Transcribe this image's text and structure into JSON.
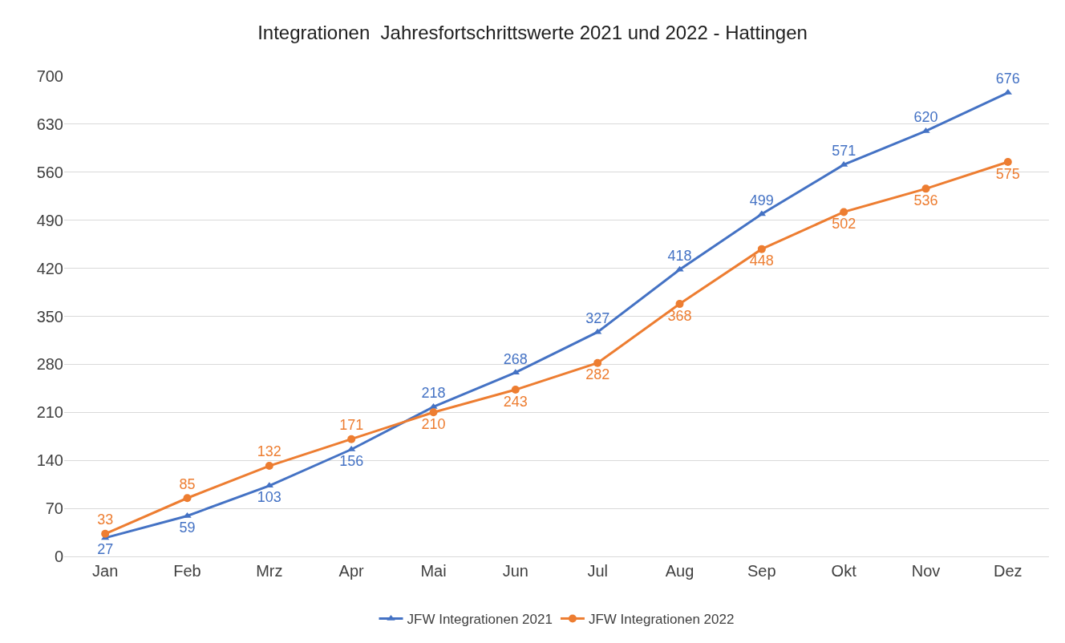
{
  "chart_data": {
    "type": "line",
    "title": "Integrationen  Jahresfortschrittswerte 2021 und 2022 - Hattingen",
    "categories": [
      "Jan",
      "Feb",
      "Mrz",
      "Apr",
      "Mai",
      "Jun",
      "Jul",
      "Aug",
      "Sep",
      "Okt",
      "Nov",
      "Dez"
    ],
    "series": [
      {
        "name": "JFW Integrationen 2021",
        "color": "#4472c4",
        "marker": "triangle",
        "values": [
          27,
          59,
          103,
          156,
          218,
          268,
          327,
          418,
          499,
          571,
          620,
          676
        ]
      },
      {
        "name": "JFW Integrationen 2022",
        "color": "#ed7d31",
        "marker": "circle",
        "values": [
          33,
          85,
          132,
          171,
          210,
          243,
          282,
          368,
          448,
          502,
          536,
          575
        ]
      }
    ],
    "ylim": [
      0,
      700
    ],
    "yticks": [
      0,
      70,
      140,
      210,
      280,
      350,
      420,
      490,
      560,
      630,
      700
    ],
    "grid": "y",
    "legend": "bottom",
    "data_labels": true
  }
}
